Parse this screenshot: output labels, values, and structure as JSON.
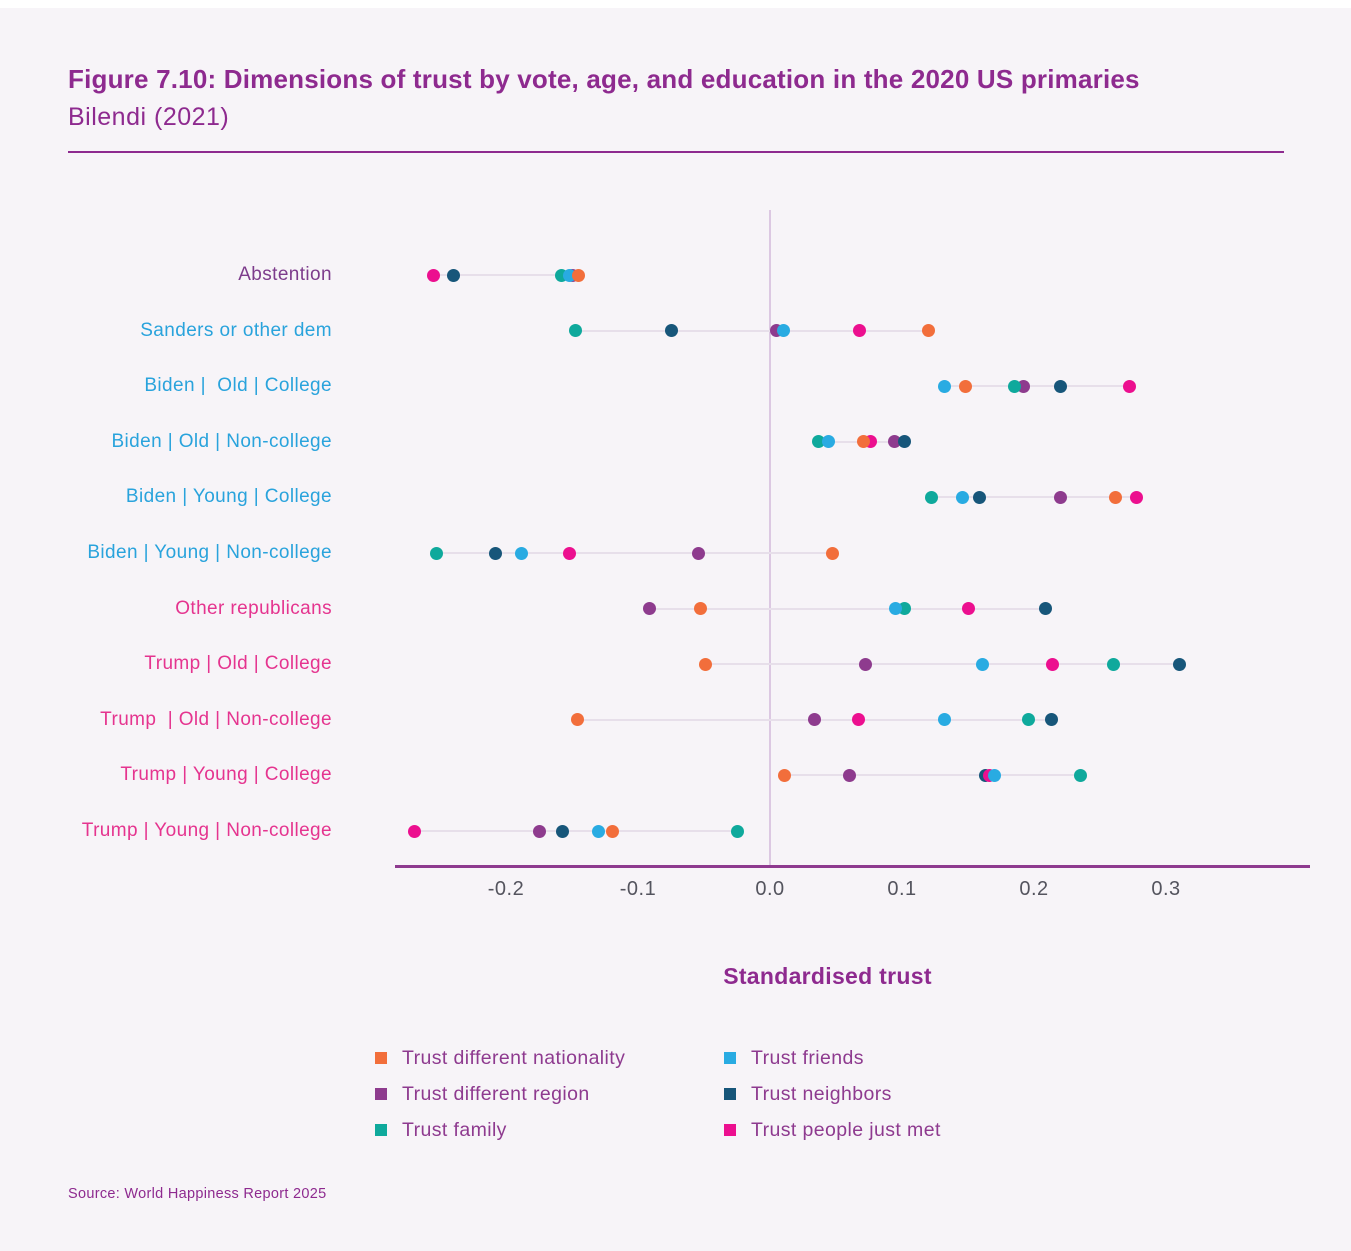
{
  "page": {
    "title": "Figure 7.10: Dimensions of trust by vote, age, and education in the 2020 US primaries",
    "subtitle": "Bilendi (2021)",
    "axis_label": "Standardised trust",
    "source": "Source: World Happiness Report 2025"
  },
  "colors": {
    "background": "#F7F4F8",
    "title": "#8E2A8F",
    "divider": "#8E2A8F",
    "axis_line": "#8E3A8F",
    "zero_line": "#DCC8E2",
    "tick_text": "#54545E",
    "connector": "#E7DFEA",
    "label_blue": "#29A3DC",
    "label_pink": "#E5348F",
    "label_purple": "#7D3C8C",
    "legend_text": "#8E3A8F"
  },
  "chart_data": {
    "type": "scatter",
    "title": "Figure 7.10: Dimensions of trust by vote, age, and education in the 2020 US primaries",
    "subtitle": "Bilendi (2021)",
    "xlabel": "Standardised trust",
    "x_tick_labels": [
      "-0.2",
      "-0.1",
      "0.0",
      "0.1",
      "0.2",
      "0.3"
    ],
    "x_tick_values": [
      -0.2,
      -0.1,
      0.0,
      0.1,
      0.2,
      0.3
    ],
    "xlim": [
      -0.284,
      0.409
    ],
    "grid": false,
    "legend_position": "bottom",
    "categories": [
      {
        "label": "Abstention",
        "group": "purple"
      },
      {
        "label": "Sanders or other dem",
        "group": "blue"
      },
      {
        "label": "Biden |  Old | College",
        "group": "blue"
      },
      {
        "label": "Biden | Old | Non-college",
        "group": "blue"
      },
      {
        "label": "Biden | Young | College",
        "group": "blue"
      },
      {
        "label": "Biden | Young | Non-college",
        "group": "blue"
      },
      {
        "label": "Other republicans",
        "group": "pink"
      },
      {
        "label": "Trump | Old | College",
        "group": "pink"
      },
      {
        "label": "Trump  | Old | Non-college",
        "group": "pink"
      },
      {
        "label": "Trump | Young | College",
        "group": "pink"
      },
      {
        "label": "Trump | Young | Non-college",
        "group": "pink"
      }
    ],
    "series": [
      {
        "key": "nationality",
        "name": "Trust different nationality",
        "color": "#F26E3B",
        "values": [
          -0.145,
          0.12,
          0.148,
          0.071,
          0.262,
          0.047,
          -0.053,
          -0.049,
          -0.146,
          0.011,
          -0.119
        ]
      },
      {
        "key": "region",
        "name": "Trust different region",
        "color": "#8E3B8E",
        "values": [
          -0.15,
          0.005,
          0.192,
          0.094,
          0.22,
          -0.054,
          -0.091,
          0.072,
          0.034,
          0.06,
          -0.175
        ]
      },
      {
        "key": "family",
        "name": "Trust family",
        "color": "#0FA99C",
        "values": [
          -0.158,
          -0.147,
          0.185,
          0.037,
          0.122,
          -0.253,
          0.102,
          0.26,
          0.196,
          0.235,
          -0.025
        ]
      },
      {
        "key": "friends",
        "name": "Trust friends",
        "color": "#29ABE2",
        "values": [
          -0.152,
          0.01,
          0.132,
          0.044,
          0.146,
          -0.188,
          0.095,
          0.161,
          0.132,
          0.17,
          -0.13
        ]
      },
      {
        "key": "neighbors",
        "name": "Trust neighbors",
        "color": "#17567A",
        "values": [
          -0.24,
          -0.075,
          0.22,
          0.102,
          0.159,
          -0.208,
          0.209,
          0.31,
          0.213,
          0.163,
          -0.157
        ]
      },
      {
        "key": "justmet",
        "name": "Trust people just met",
        "color": "#EC0F8F",
        "values": [
          -0.255,
          0.068,
          0.272,
          0.076,
          0.278,
          -0.152,
          0.15,
          0.214,
          0.067,
          0.166,
          -0.269
        ]
      }
    ],
    "draw_order": [
      "region",
      "family",
      "neighbors",
      "justmet",
      "friends",
      "nationality"
    ],
    "legend_columns": [
      [
        "nationality",
        "region",
        "family"
      ],
      [
        "friends",
        "neighbors",
        "justmet"
      ]
    ]
  }
}
